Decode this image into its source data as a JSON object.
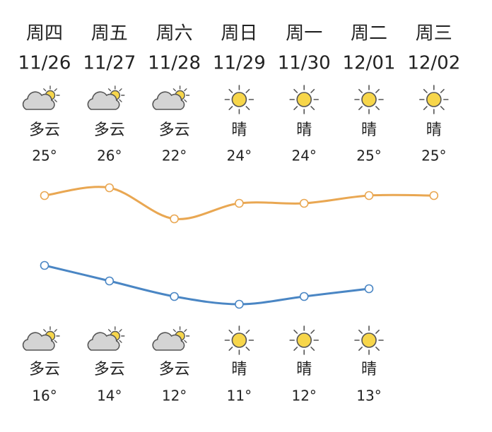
{
  "chart_data": {
    "type": "line",
    "categories": [
      "周四",
      "周五",
      "周六",
      "周日",
      "周一",
      "周二",
      "周三"
    ],
    "dates": [
      "11/26",
      "11/27",
      "11/28",
      "11/29",
      "11/30",
      "12/01",
      "12/02"
    ],
    "weather": [
      "多云",
      "多云",
      "多云",
      "晴",
      "晴",
      "晴",
      "晴"
    ],
    "series": [
      {
        "color": "#e9a752",
        "values": [
          25,
          26,
          22,
          24,
          24,
          25,
          25
        ],
        "value_labels": [
          "25°",
          "26°",
          "22°",
          "24°",
          "24°",
          "25°",
          "25°"
        ]
      },
      {
        "color": "#4a86c4",
        "values": [
          16,
          14,
          12,
          11,
          12,
          13,
          null
        ],
        "value_labels": [
          "16°",
          "14°",
          "12°",
          "11°",
          "12°",
          "13°",
          null
        ]
      }
    ]
  }
}
